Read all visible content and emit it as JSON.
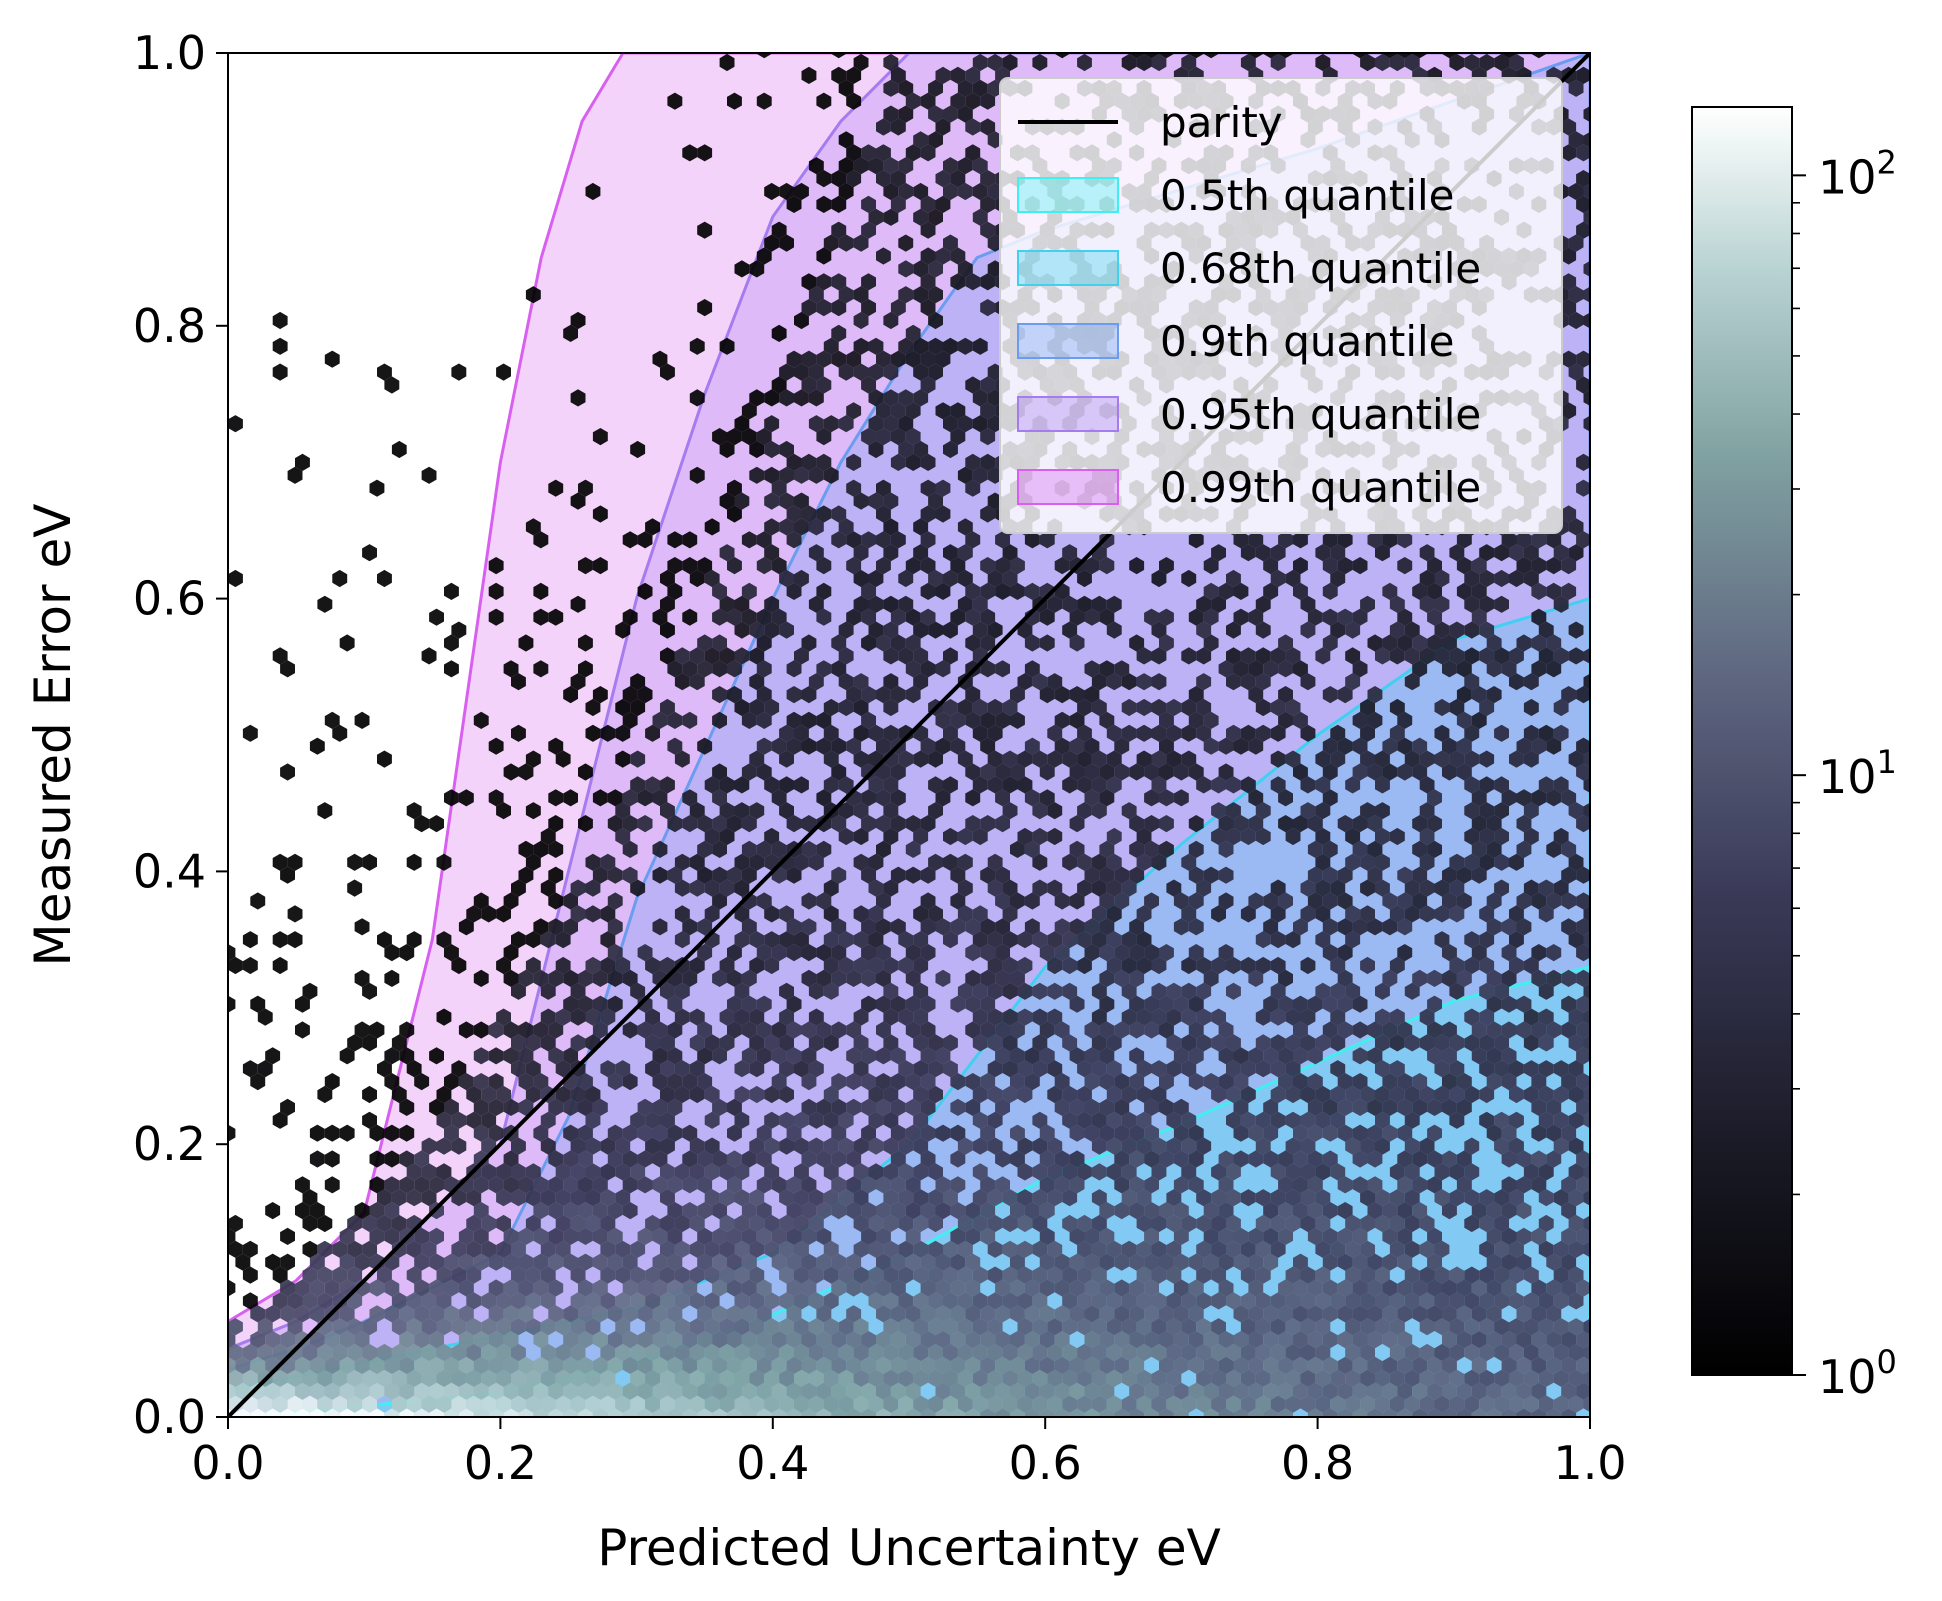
{
  "chart_data": {
    "type": "hexbin",
    "xlabel": "Predicted Uncertainty eV",
    "ylabel": "Measured Error eV",
    "xlim": [
      0.0,
      1.0
    ],
    "ylim": [
      0.0,
      1.0
    ],
    "xticks": [
      "0.0",
      "0.2",
      "0.4",
      "0.6",
      "0.8",
      "1.0"
    ],
    "yticks": [
      "0.0",
      "0.2",
      "0.4",
      "0.6",
      "0.8",
      "1.0"
    ],
    "x_tick_values": [
      0.0,
      0.2,
      0.4,
      0.6,
      0.8,
      1.0
    ],
    "y_tick_values": [
      0.0,
      0.2,
      0.4,
      0.6,
      0.8,
      1.0
    ],
    "parity": {
      "label": "parity",
      "x": [
        0.0,
        1.0
      ],
      "y": [
        0.0,
        1.0
      ],
      "color": "#000000"
    },
    "quantile_bands": [
      {
        "label": "0.5th quantile",
        "color": "#40f0f0",
        "x": [
          0.0,
          0.05,
          0.1,
          0.2,
          0.3,
          0.4,
          0.5,
          0.6,
          0.7,
          0.8,
          0.9,
          1.0
        ],
        "upper": [
          0.0,
          0.004,
          0.008,
          0.018,
          0.04,
          0.075,
          0.12,
          0.175,
          0.215,
          0.26,
          0.305,
          0.33
        ]
      },
      {
        "label": "0.68th quantile",
        "color": "#40d0f0",
        "x": [
          0.0,
          0.05,
          0.1,
          0.2,
          0.3,
          0.4,
          0.5,
          0.6,
          0.7,
          0.8,
          0.9,
          1.0
        ],
        "upper": [
          0.02,
          0.03,
          0.04,
          0.06,
          0.08,
          0.12,
          0.2,
          0.33,
          0.42,
          0.5,
          0.57,
          0.6
        ]
      },
      {
        "label": "0.9th quantile",
        "color": "#6a9cf0",
        "x": [
          0.0,
          0.05,
          0.1,
          0.2,
          0.25,
          0.3,
          0.4,
          0.45,
          0.5,
          0.55,
          0.6,
          0.7,
          0.8,
          1.0
        ],
        "upper": [
          0.035,
          0.05,
          0.07,
          0.12,
          0.22,
          0.38,
          0.6,
          0.7,
          0.78,
          0.85,
          0.87,
          0.9,
          0.93,
          1.0
        ]
      },
      {
        "label": "0.95th quantile",
        "color": "#a57cf0",
        "x": [
          0.0,
          0.05,
          0.1,
          0.2,
          0.25,
          0.3,
          0.35,
          0.4,
          0.45,
          0.5,
          1.0
        ],
        "upper": [
          0.05,
          0.07,
          0.1,
          0.2,
          0.4,
          0.6,
          0.75,
          0.88,
          0.95,
          1.0,
          1.0
        ]
      },
      {
        "label": "0.99th quantile",
        "color": "#d860f0",
        "x": [
          0.0,
          0.05,
          0.1,
          0.15,
          0.2,
          0.23,
          0.26,
          0.29,
          0.3,
          1.0
        ],
        "upper": [
          0.07,
          0.1,
          0.15,
          0.35,
          0.7,
          0.85,
          0.95,
          1.0,
          1.0,
          1.0
        ]
      }
    ],
    "colorbar": {
      "scale": "log",
      "range": [
        1,
        130
      ],
      "ticks": [
        {
          "value": 1,
          "base": "10",
          "exp": "0"
        },
        {
          "value": 10,
          "base": "10",
          "exp": "1"
        },
        {
          "value": 100,
          "base": "10",
          "exp": "2"
        }
      ],
      "colormap": "bone"
    },
    "legend": {
      "location": "upper right",
      "entries": [
        "parity",
        "0.5th quantile",
        "0.68th quantile",
        "0.9th quantile",
        "0.95th quantile",
        "0.99th quantile"
      ]
    }
  }
}
